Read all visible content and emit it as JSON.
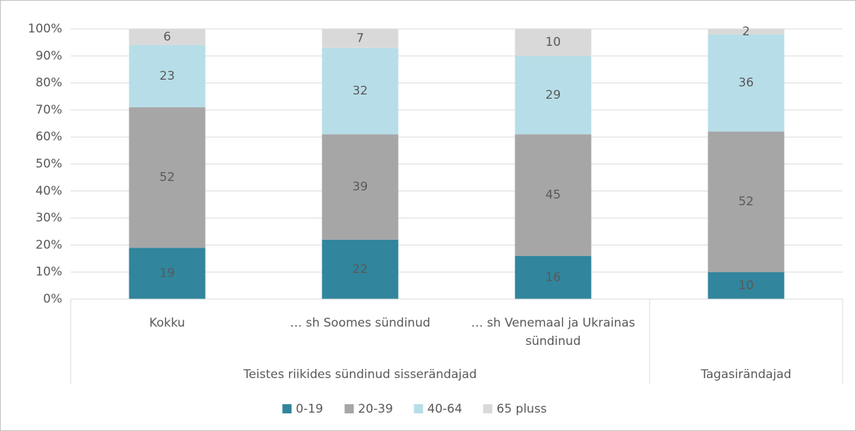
{
  "chart_data": {
    "type": "stacked_bar",
    "categories": [
      "Kokku",
      "… sh Soomes sündinud",
      "… sh Venemaal ja Ukrainas sündinud",
      null
    ],
    "category_groups": [
      "Teistes riikides sündinud sisserändajad",
      null,
      null,
      "Tagasirändajad"
    ],
    "series": [
      {
        "name": "0-19",
        "color": "#31859c",
        "values": [
          19,
          22,
          16,
          10
        ]
      },
      {
        "name": "20-39",
        "color": "#a6a6a6",
        "values": [
          52,
          39,
          45,
          52
        ]
      },
      {
        "name": "40-64",
        "color": "#b7dee8",
        "values": [
          23,
          32,
          29,
          36
        ]
      },
      {
        "name": "65 pluss",
        "color": "#d9d9d9",
        "values": [
          6,
          7,
          10,
          2
        ]
      }
    ],
    "ylim": [
      0,
      100
    ],
    "yticks": [
      {
        "value": 0,
        "label": "0%"
      },
      {
        "value": 10,
        "label": "10%"
      },
      {
        "value": 20,
        "label": "20%"
      },
      {
        "value": 30,
        "label": "30%"
      },
      {
        "value": 40,
        "label": "40%"
      },
      {
        "value": 50,
        "label": "50%"
      },
      {
        "value": 60,
        "label": "60%"
      },
      {
        "value": 70,
        "label": "70%"
      },
      {
        "value": 80,
        "label": "80%"
      },
      {
        "value": 90,
        "label": "90%"
      },
      {
        "value": 100,
        "label": "100%"
      }
    ],
    "grid": true,
    "legend": "bottom"
  }
}
